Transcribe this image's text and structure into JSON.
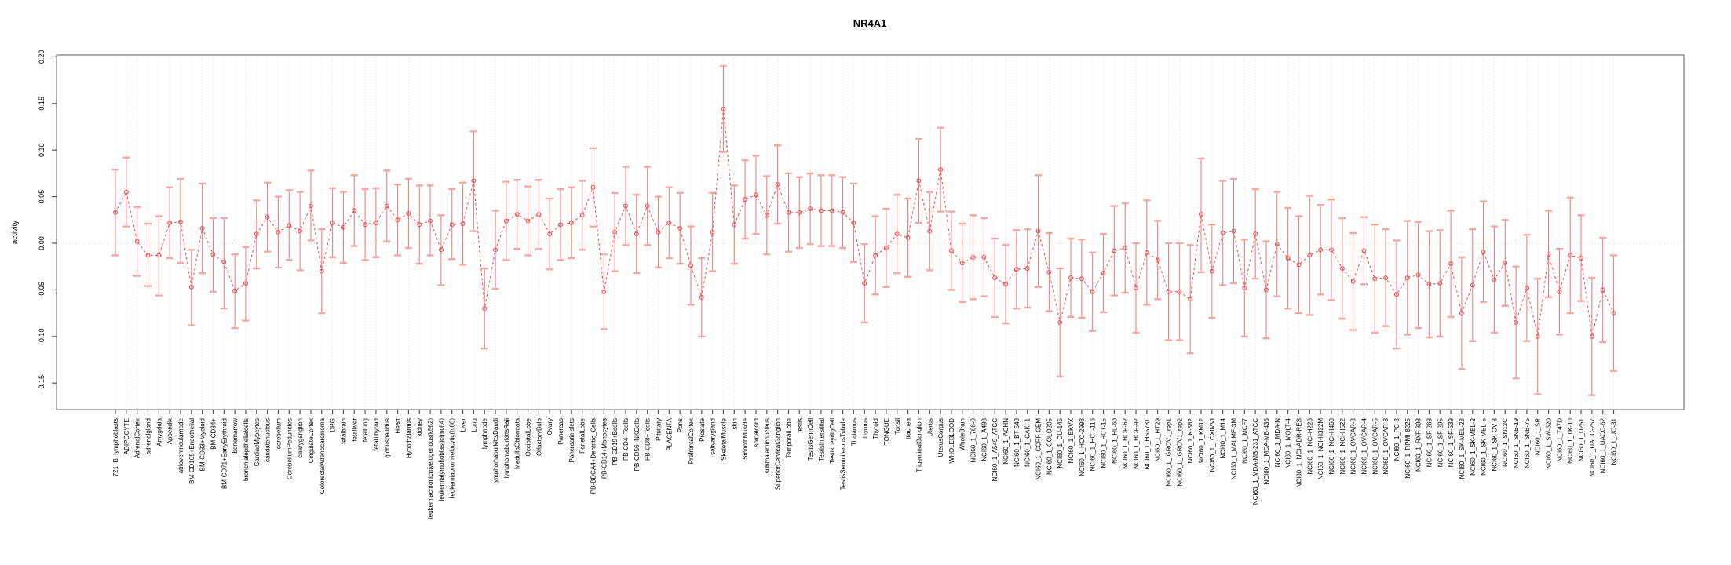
{
  "chart_data": {
    "type": "scatter",
    "title": "NR4A1",
    "xlabel": "",
    "ylabel": "activity",
    "ylim": [
      -0.179,
      0.201
    ],
    "yticks": [
      -0.15,
      -0.1,
      -0.05,
      0.0,
      0.05,
      0.1,
      0.15,
      0.2
    ],
    "ytick_labels": [
      "-0.15",
      "-0.10",
      "-0.05",
      "0.00",
      "0.05",
      "0.10",
      "0.15",
      "0.20"
    ],
    "grid": "vertical dotted gridline per category, dotted horizontal line at 0",
    "legend": "none",
    "point_style": "open-circle",
    "line_style": "dashed",
    "colors": {
      "point": "#e9595f",
      "line": "#e9595f",
      "whisker": "#f08080",
      "cap": "#f5a7a7",
      "box": "#7a7a7a",
      "gridline": "#d9d9d9",
      "tick": "#555555"
    },
    "categories": [
      "721_B_lymphoblasts",
      "ADIPOCYTE",
      "AdrenalCortex",
      "adrenalgland",
      "Amygdala",
      "Appendix",
      "atrioventricularnode",
      "BM-CD105+Endothelial",
      "BM-CD33+Myeloid",
      "BM-CD34+",
      "BM-CD71+EarlyErythroid",
      "bonemarrow",
      "bronchialepithelialcells",
      "CardiacMyocytes",
      "caudatenucleus",
      "cerebellum",
      "CerebellumPeduncles",
      "ciliaryganglion",
      "CingulateCortex",
      "ColorectalAdenocarcinoma",
      "DRG",
      "fetalbrain",
      "fetalliver",
      "fetallung",
      "fetalThyroid",
      "globuspallidus",
      "Heart",
      "Hypothalamus",
      "kidney",
      "leukemiachronicmyelogenous(k562)",
      "leukemialymphoblastic(molt4)",
      "leukemiapromyelocytic(hl60)",
      "Liver",
      "Lung",
      "lymphnode",
      "lymphomaburkittsDaudi",
      "lymphomaburkittsRaji",
      "MedullaOblongata",
      "OccipitalLobe",
      "OlfactoryBulb",
      "Ovary",
      "Pancreas",
      "PancreaticIslets",
      "ParietalLobe",
      "PB-BDCA4+Dentritic_Cells",
      "PB-CD14+Monocytes",
      "PB-CD19+Bcells",
      "PB-CD4+Tcells",
      "PB-CD56+NKCells",
      "PB-CD8+Tcells",
      "Pituitary",
      "PLACENTA",
      "Pons",
      "PrefrontalCortex",
      "Prostate",
      "salivarygland",
      "SkeletalMuscle",
      "skin",
      "SmoothMuscle",
      "spinalcord",
      "subthalamicnucleus",
      "SuperiorCervicalGanglion",
      "TemporalLobe",
      "testis",
      "TestisGermCell",
      "TestisInterstitial",
      "TestisLeydigCell",
      "TestisSeminiferousTubule",
      "Thalamus",
      "thymus",
      "Thyroid",
      "TONGUE",
      "Tonsil",
      "trachea",
      "TrigeminalGanglion",
      "Uterus",
      "UterusCorpus",
      "WHOLEBLOOD",
      "WholeBrain",
      "NCI60_1_786-0",
      "NCI60_1_A498",
      "NCI60_1_A549_ATCC",
      "NCI60_1_ACHN",
      "NCI60_1_BT-549",
      "NCI60_1_CAKI-1",
      "NCI60_1_CCRF-CEM",
      "NCI60_1_COLO205",
      "NCI60_1_DU-145",
      "NCI60_1_EKVX",
      "NCI60_1_HCC-2998",
      "NCI60_1_HCT-116",
      "NCI60_1_HCT-15",
      "NCI60_1_HL-60",
      "NCI60_1_HOP-62",
      "NCI60_1_HOP-92",
      "NCI60_1_HS578T",
      "NCI60_1_HT29",
      "NCI60_1_IGROV1_rep1",
      "NCI60_1_IGROV1_rep2",
      "NCI60_1_K-562",
      "NCI60_1_KM12",
      "NCI60_1_LOXIMVI",
      "NCI60_1_M14",
      "NCI60_1_MALME-3M",
      "NCI60_1_MCF7",
      "NCI60_1_MDA-MB-231_ATCC",
      "NCI60_1_MDA-MB-435",
      "NCI60_1_MDA-N",
      "NCI60_1_MOLT-4",
      "NCI60_1_NCI-ADR-RES",
      "NCI60_1_NCI-H226",
      "NCI60_1_NCI-H322M",
      "NCI60_1_NCI-H460",
      "NCI60_1_NCI-H522",
      "NCI60_1_OVCAR-3",
      "NCI60_1_OVCAR-4",
      "NCI60_1_OVCAR-5",
      "NCI60_1_OVCAR-8",
      "NCI60_1_PC-3",
      "NCI60_1_RPMI-8226",
      "NCI60_1_RXF-393",
      "NCI60_1_SF-268",
      "NCI60_1_SF-295",
      "NCI60_1_SF-539",
      "NCI60_1_SK-MEL-28",
      "NCI60_1_SK-MEL-2",
      "NCI60_1_SK-MEL-5",
      "NCI60_1_SK-OV-3",
      "NCI60_1_SN12C",
      "NCI60_1_SNB-19",
      "NCI60_1_SNB-75",
      "NCI60_1_SR",
      "NCI60_1_SW-620",
      "NCI60_1_T47D",
      "NCI60_1_TK-10",
      "NCI60_1_U251",
      "NCI60_1_UACC-257",
      "NCI60_1_UACC-62",
      "NCI60_1_UO-31"
    ],
    "series": [
      {
        "name": "activity",
        "values": [
          0.033,
          0.055,
          0.002,
          -0.013,
          -0.013,
          0.022,
          0.023,
          -0.047,
          0.016,
          -0.012,
          -0.02,
          -0.051,
          -0.043,
          0.01,
          0.028,
          0.012,
          0.019,
          0.013,
          0.04,
          -0.03,
          0.022,
          0.017,
          0.035,
          0.02,
          0.022,
          0.04,
          0.025,
          0.032,
          0.02,
          0.024,
          -0.007,
          0.02,
          0.021,
          0.067,
          -0.07,
          -0.007,
          0.024,
          0.031,
          0.024,
          0.031,
          0.01,
          0.02,
          0.022,
          0.03,
          0.06,
          -0.052,
          0.012,
          0.04,
          0.01,
          0.04,
          0.012,
          0.022,
          0.016,
          -0.024,
          -0.058,
          0.012,
          0.144,
          0.02,
          0.047,
          0.052,
          0.03,
          0.063,
          0.033,
          0.033,
          0.037,
          0.035,
          0.035,
          0.033,
          0.022,
          -0.043,
          -0.013,
          -0.005,
          0.01,
          0.006,
          0.067,
          0.013,
          0.079,
          -0.008,
          -0.021,
          -0.015,
          -0.015,
          -0.037,
          -0.044,
          -0.028,
          -0.027,
          0.013,
          -0.031,
          -0.085,
          -0.037,
          -0.038,
          -0.052,
          -0.032,
          -0.008,
          -0.005,
          -0.048,
          -0.01,
          -0.018,
          -0.052,
          -0.052,
          -0.06,
          0.031,
          -0.03,
          0.011,
          0.013,
          -0.048,
          0.01,
          -0.05,
          -0.001,
          -0.016,
          -0.023,
          -0.013,
          -0.007,
          -0.007,
          -0.027,
          -0.041,
          -0.008,
          -0.038,
          -0.037,
          -0.055,
          -0.037,
          -0.034,
          -0.044,
          -0.043,
          -0.022,
          -0.075,
          -0.045,
          -0.009,
          -0.039,
          -0.021,
          -0.085,
          -0.048,
          -0.1,
          -0.012,
          -0.052,
          -0.013,
          -0.016,
          -0.1,
          -0.05,
          -0.075
        ],
        "err_low": [
          -0.013,
          0.018,
          -0.035,
          -0.046,
          -0.056,
          -0.016,
          -0.021,
          -0.088,
          -0.032,
          -0.052,
          -0.07,
          -0.091,
          -0.083,
          -0.027,
          -0.009,
          -0.026,
          -0.018,
          -0.029,
          0.003,
          -0.075,
          -0.015,
          -0.021,
          -0.003,
          -0.018,
          -0.015,
          0.002,
          -0.013,
          -0.005,
          -0.022,
          -0.013,
          -0.045,
          -0.017,
          -0.023,
          0.013,
          -0.113,
          -0.049,
          -0.018,
          -0.006,
          -0.013,
          -0.006,
          -0.028,
          -0.018,
          -0.016,
          -0.007,
          0.018,
          -0.092,
          -0.03,
          -0.002,
          -0.032,
          -0.002,
          -0.026,
          -0.016,
          -0.022,
          -0.066,
          -0.1,
          -0.03,
          0.098,
          -0.022,
          0.005,
          0.01,
          -0.012,
          0.021,
          -0.009,
          -0.005,
          -0.001,
          -0.003,
          -0.003,
          -0.005,
          -0.02,
          -0.085,
          -0.055,
          -0.047,
          -0.032,
          -0.036,
          0.022,
          -0.029,
          0.034,
          -0.05,
          -0.063,
          -0.06,
          -0.057,
          -0.079,
          -0.086,
          -0.07,
          -0.069,
          -0.047,
          -0.073,
          -0.143,
          -0.079,
          -0.08,
          -0.094,
          -0.074,
          -0.056,
          -0.053,
          -0.096,
          -0.066,
          -0.06,
          -0.104,
          -0.104,
          -0.118,
          -0.031,
          -0.08,
          -0.045,
          -0.043,
          -0.1,
          -0.038,
          -0.102,
          -0.057,
          -0.07,
          -0.075,
          -0.077,
          -0.055,
          -0.061,
          -0.081,
          -0.093,
          -0.044,
          -0.096,
          -0.089,
          -0.113,
          -0.098,
          -0.091,
          -0.101,
          -0.1,
          -0.079,
          -0.135,
          -0.105,
          -0.063,
          -0.096,
          -0.067,
          -0.145,
          -0.105,
          -0.162,
          -0.058,
          -0.098,
          -0.075,
          -0.062,
          -0.163,
          -0.106,
          -0.137
        ],
        "err_high": [
          0.079,
          0.092,
          0.039,
          0.021,
          0.029,
          0.06,
          0.069,
          -0.007,
          0.064,
          0.027,
          0.027,
          -0.012,
          -0.004,
          0.046,
          0.065,
          0.05,
          0.057,
          0.055,
          0.078,
          0.015,
          0.059,
          0.055,
          0.073,
          0.058,
          0.059,
          0.078,
          0.063,
          0.069,
          0.062,
          0.062,
          0.03,
          0.058,
          0.065,
          0.12,
          -0.027,
          0.035,
          0.066,
          0.068,
          0.061,
          0.068,
          0.048,
          0.058,
          0.06,
          0.067,
          0.102,
          -0.012,
          0.054,
          0.082,
          0.052,
          0.082,
          0.05,
          0.06,
          0.054,
          0.018,
          -0.016,
          0.054,
          0.19,
          0.062,
          0.089,
          0.094,
          0.072,
          0.105,
          0.075,
          0.071,
          0.075,
          0.073,
          0.073,
          0.071,
          0.064,
          -0.001,
          0.029,
          0.037,
          0.052,
          0.048,
          0.112,
          0.055,
          0.124,
          0.034,
          0.021,
          0.03,
          0.027,
          0.005,
          -0.002,
          0.014,
          0.015,
          0.073,
          0.011,
          -0.027,
          0.005,
          0.004,
          -0.01,
          0.01,
          0.04,
          0.043,
          0.0,
          0.046,
          0.024,
          0.0,
          0.0,
          -0.002,
          0.091,
          0.02,
          0.067,
          0.069,
          0.004,
          0.058,
          0.002,
          0.055,
          0.038,
          0.029,
          0.051,
          0.041,
          0.047,
          0.027,
          0.011,
          0.028,
          0.02,
          0.015,
          0.003,
          0.024,
          0.023,
          0.013,
          0.014,
          0.035,
          -0.015,
          0.015,
          0.045,
          0.018,
          0.025,
          -0.025,
          0.009,
          -0.038,
          0.035,
          -0.006,
          0.049,
          0.03,
          -0.037,
          0.006,
          -0.013
        ]
      }
    ]
  }
}
